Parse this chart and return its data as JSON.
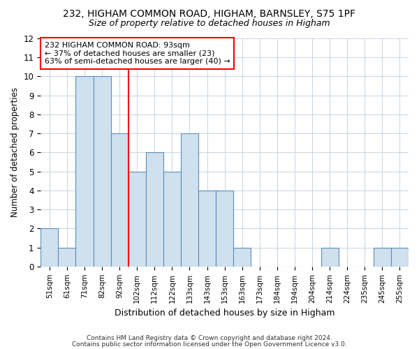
{
  "title1": "232, HIGHAM COMMON ROAD, HIGHAM, BARNSLEY, S75 1PF",
  "title2": "Size of property relative to detached houses in Higham",
  "xlabel": "Distribution of detached houses by size in Higham",
  "ylabel": "Number of detached properties",
  "categories": [
    "51sqm",
    "61sqm",
    "71sqm",
    "82sqm",
    "92sqm",
    "102sqm",
    "112sqm",
    "122sqm",
    "133sqm",
    "143sqm",
    "153sqm",
    "163sqm",
    "173sqm",
    "184sqm",
    "194sqm",
    "204sqm",
    "214sqm",
    "224sqm",
    "235sqm",
    "245sqm",
    "255sqm"
  ],
  "values": [
    2,
    1,
    10,
    10,
    7,
    5,
    6,
    5,
    7,
    4,
    4,
    1,
    0,
    0,
    0,
    0,
    1,
    0,
    0,
    1,
    1
  ],
  "bar_color": "#cfe0ef",
  "bar_edge_color": "#5b8db8",
  "red_line_x": 4.5,
  "annotation_lines": [
    "232 HIGHAM COMMON ROAD: 93sqm",
    "← 37% of detached houses are smaller (23)",
    "63% of semi-detached houses are larger (40) →"
  ],
  "annotation_box_color": "white",
  "annotation_box_edge": "red",
  "ylim": [
    0,
    12
  ],
  "yticks": [
    0,
    1,
    2,
    3,
    4,
    5,
    6,
    7,
    8,
    9,
    10,
    11,
    12
  ],
  "footer1": "Contains HM Land Registry data © Crown copyright and database right 2024.",
  "footer2": "Contains public sector information licensed under the Open Government Licence v3.0.",
  "bg_color": "#ffffff",
  "grid_color": "#c8d4e0"
}
